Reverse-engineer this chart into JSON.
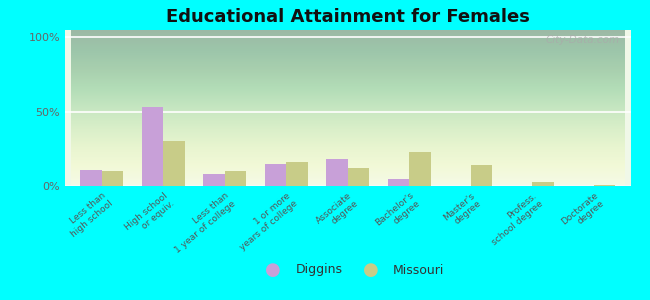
{
  "title": "Educational Attainment for Females",
  "categories": [
    "Less than\nhigh school",
    "High school\nor equiv.",
    "Less than\n1 year of college",
    "1 or more\nyears of college",
    "Associate\ndegree",
    "Bachelor's\ndegree",
    "Master's\ndegree",
    "Profess.\nschool degree",
    "Doctorate\ndegree"
  ],
  "diggins": [
    10.5,
    53.0,
    8.0,
    15.0,
    18.0,
    5.0,
    0.0,
    0.0,
    0.0
  ],
  "missouri": [
    10.0,
    30.0,
    10.0,
    16.0,
    12.0,
    23.0,
    14.0,
    3.0,
    1.0
  ],
  "diggins_color": "#c8a0d8",
  "missouri_color": "#c8cc88",
  "background_top": "#d8ecd0",
  "background_bottom": "#f0f8e8",
  "outer_bg": "#00ffff",
  "yticks": [
    0,
    50,
    100
  ],
  "ylabels": [
    "0%",
    "50%",
    "100%"
  ],
  "ylim": [
    0,
    105
  ],
  "watermark": "City-Data.com",
  "legend_diggins": "Diggins",
  "legend_missouri": "Missouri"
}
